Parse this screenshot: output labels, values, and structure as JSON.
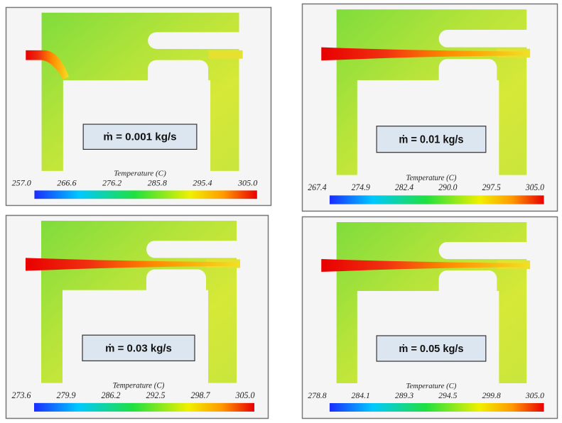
{
  "panels": [
    {
      "label": "ṁ = 0.001 kg/s",
      "colorbar_title": "Temperature (C)",
      "ticks": [
        "257.0",
        "266.6",
        "276.2",
        "285.8",
        "295.4",
        "305.0"
      ]
    },
    {
      "label": "ṁ = 0.01 kg/s",
      "colorbar_title": "Temperature (C)",
      "ticks": [
        "267.4",
        "274.9",
        "282.4",
        "290.0",
        "297.5",
        "305.0"
      ]
    },
    {
      "label": "ṁ = 0.03 kg/s",
      "colorbar_title": "Temperature (C)",
      "ticks": [
        "273.6",
        "279.9",
        "286.2",
        "292.5",
        "298.7",
        "305.0"
      ]
    },
    {
      "label": "ṁ = 0.05 kg/s",
      "colorbar_title": "Temperature (C)",
      "ticks": [
        "278.8",
        "284.1",
        "289.3",
        "294.5",
        "299.8",
        "305.0"
      ]
    }
  ]
}
